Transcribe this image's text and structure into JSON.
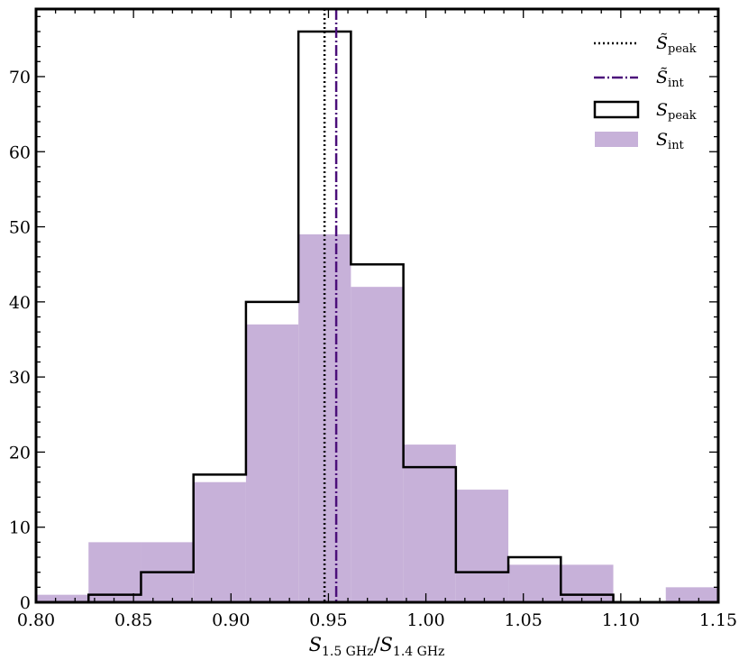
{
  "chart_data": {
    "type": "bar",
    "title": "",
    "xlabel": "S_1.5 GHz / S_1.4 GHz",
    "xlabel_parts": {
      "main1": "S",
      "sub1": "1.5 GHz",
      "sep": "/",
      "main2": "S",
      "sub2": "1.4 GHz"
    },
    "ylabel": "",
    "xlim": [
      0.8,
      1.15
    ],
    "ylim": [
      0,
      79
    ],
    "xticks": [
      "0.80",
      "0.85",
      "0.90",
      "0.95",
      "1.00",
      "1.05",
      "1.10",
      "1.15"
    ],
    "yticks": [
      "0",
      "10",
      "20",
      "30",
      "40",
      "50",
      "60",
      "70"
    ],
    "bin_edges_range": [
      0.8,
      1.15
    ],
    "n_bins": 13,
    "series": [
      {
        "name": "S_int",
        "style": "filled",
        "color": "#c7b1d9",
        "values": [
          1,
          8,
          8,
          16,
          37,
          49,
          42,
          21,
          15,
          5,
          5,
          0,
          2
        ]
      },
      {
        "name": "S_peak",
        "style": "step",
        "color": "#000000",
        "values": [
          0,
          1,
          4,
          17,
          40,
          76,
          45,
          18,
          4,
          6,
          1,
          0,
          0
        ]
      }
    ],
    "vlines": [
      {
        "name": "median S_peak",
        "x": 0.948,
        "style": "dotted",
        "color": "#000000"
      },
      {
        "name": "median S_int",
        "x": 0.954,
        "style": "dashdot",
        "color": "#4b0f7a"
      }
    ],
    "legend": {
      "placement": "top-right",
      "entries": [
        {
          "main": "S̃",
          "sub": "peak"
        },
        {
          "main": "S̃",
          "sub": "int"
        },
        {
          "main": "S",
          "sub": "peak"
        },
        {
          "main": "S",
          "sub": "int"
        }
      ]
    }
  }
}
